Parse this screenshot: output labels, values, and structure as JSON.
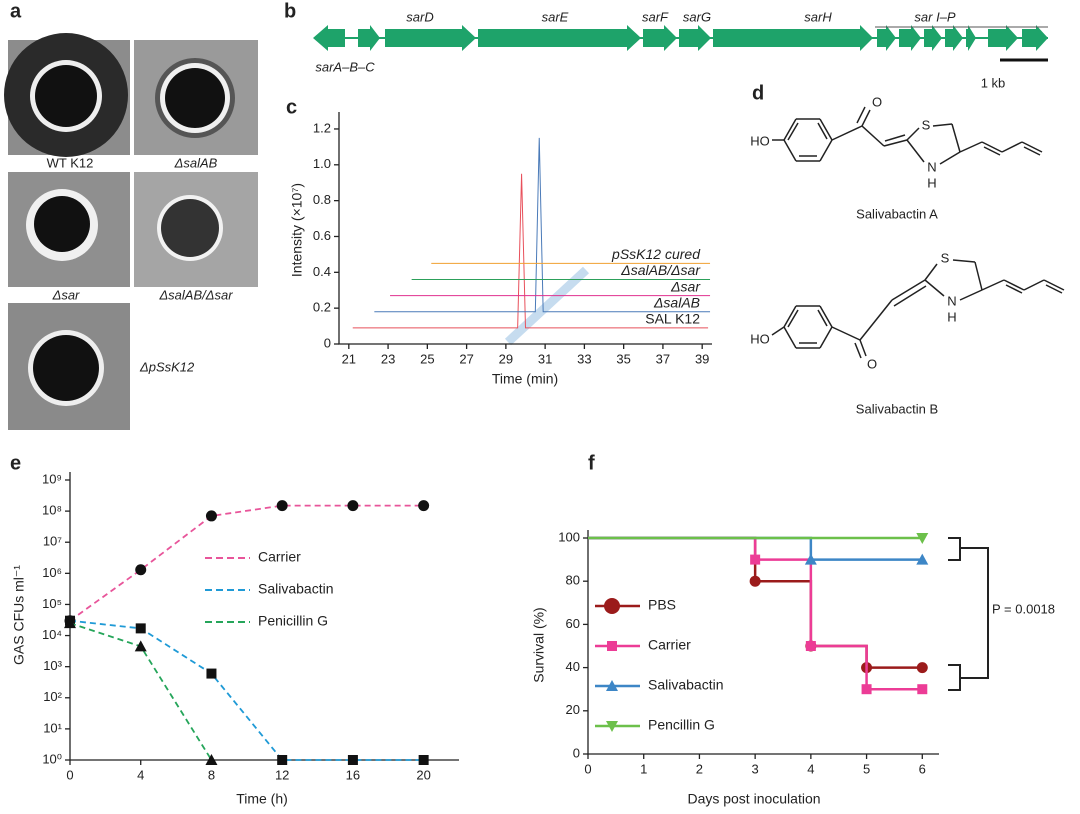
{
  "panel_labels": [
    "a",
    "b",
    "c",
    "d",
    "e",
    "f"
  ],
  "panel_a": {
    "labels": [
      "WT K12",
      "ΔsalAB",
      "Δsar",
      "ΔsalAB/Δsar",
      "ΔpSsK12"
    ]
  },
  "panel_b": {
    "genes": [
      "sarA–B–C",
      "sarD",
      "sarE",
      "sarF",
      "sarG",
      "sarH",
      "sar I–P"
    ],
    "scale_label": "1 kb"
  },
  "panel_d": {
    "structures": [
      {
        "name": "Salivabactin A",
        "atoms": {
          "hydroxyl": "HO",
          "oxygen": "O",
          "sulfur": "S",
          "nitrogen": "N",
          "hydrogen": "H"
        }
      },
      {
        "name": "Salivabactin B",
        "atoms": {
          "hydroxyl": "HO",
          "oxygen": "O",
          "sulfur": "S",
          "nitrogen": "N",
          "hydrogen": "H"
        }
      }
    ]
  },
  "chart_data": [
    {
      "type": "line",
      "x_label": "Time (min)",
      "y_label": "Intensity (×10⁷)",
      "xlim": [
        20.5,
        39.5
      ],
      "ylim": [
        0,
        1.25
      ],
      "xticks": [
        21,
        23,
        25,
        27,
        29,
        31,
        33,
        35,
        37,
        39
      ],
      "yticks": [
        0,
        0.2,
        0.4,
        0.6,
        0.8,
        {
          "value": 1,
          "label": "1.0"
        },
        1.2
      ],
      "series": [
        {
          "name": "SAL K12",
          "color": "#e8505b",
          "x": [
            21.2,
            29.6,
            29.8,
            30.0,
            39.3
          ],
          "values": [
            0.09,
            0.09,
            0.95,
            0.09,
            0.09
          ]
        },
        {
          "name": "ΔsalAB",
          "color": "#4a7ab8",
          "x": [
            22.3,
            30.5,
            30.7,
            30.9,
            39.4
          ],
          "values": [
            0.18,
            0.18,
            1.15,
            0.18,
            0.18
          ]
        },
        {
          "name": "Δsar",
          "color": "#e0308f",
          "x": [
            23.1,
            39.4
          ],
          "values": [
            0.27,
            0.27
          ]
        },
        {
          "name": "ΔsalAB/Δsar",
          "color": "#2ca05a",
          "x": [
            24.2,
            39.4
          ],
          "values": [
            0.36,
            0.36
          ]
        },
        {
          "name": "pSsK12 cured",
          "color": "#f0a030",
          "x": [
            25.2,
            39.4
          ],
          "values": [
            0.45,
            0.45
          ]
        }
      ]
    },
    {
      "type": "line",
      "x_label": "Time (h)",
      "y_label": "GAS CFUs ml⁻¹",
      "log_y": true,
      "xlim": [
        0,
        22
      ],
      "ylim": [
        1,
        1000000000
      ],
      "xticks": [
        0,
        4,
        8,
        12,
        16,
        20
      ],
      "yticks": [
        {
          "value": 1,
          "label": "10⁰"
        },
        {
          "value": 10,
          "label": "10¹"
        },
        {
          "value": 100,
          "label": "10²"
        },
        {
          "value": 1000,
          "label": "10³"
        },
        {
          "value": 10000,
          "label": "10⁴"
        },
        {
          "value": 100000,
          "label": "10⁵"
        },
        {
          "value": 1000000,
          "label": "10⁶"
        },
        {
          "value": 10000000,
          "label": "10⁷"
        },
        {
          "value": 100000000,
          "label": "10⁸"
        },
        {
          "value": 1000000000,
          "label": "10⁹"
        }
      ],
      "series": [
        {
          "name": "Carrier",
          "color": "#e8559a",
          "marker": "circle",
          "x": [
            0,
            4,
            8,
            12,
            16,
            20
          ],
          "values": [
            30000,
            1300000,
            70000000,
            150000000,
            150000000,
            150000000
          ]
        },
        {
          "name": "Salivabactin",
          "color": "#1f9ad6",
          "marker": "square",
          "x": [
            0,
            4,
            8,
            12,
            16,
            20
          ],
          "values": [
            30000,
            17000,
            600,
            1,
            1,
            1
          ]
        },
        {
          "name": "Penicillin G",
          "color": "#25a55a",
          "marker": "triangle",
          "x": [
            0,
            4,
            8
          ],
          "values": [
            25000,
            4500,
            1
          ]
        }
      ]
    },
    {
      "type": "step",
      "x_label": "Days post inoculation",
      "y_label": "Survival (%)",
      "xlim": [
        0,
        6.3
      ],
      "ylim": [
        0,
        100
      ],
      "xticks": [
        0,
        1,
        2,
        3,
        4,
        5,
        6
      ],
      "yticks": [
        0,
        20,
        40,
        60,
        80,
        100
      ],
      "annotation": "P = 0.0018",
      "series": [
        {
          "name": "PBS",
          "color": "#9b1b1b",
          "marker": "circle",
          "x": [
            0,
            3,
            4,
            5,
            6
          ],
          "values": [
            100,
            80,
            50,
            40,
            40
          ]
        },
        {
          "name": "Carrier",
          "color": "#ec3c96",
          "marker": "square",
          "x": [
            0,
            3,
            4,
            5,
            6
          ],
          "values": [
            100,
            90,
            50,
            30,
            30
          ]
        },
        {
          "name": "Salivabactin",
          "color": "#3d86c6",
          "marker": "triangle",
          "x": [
            0,
            4,
            6
          ],
          "values": [
            100,
            90,
            90
          ]
        },
        {
          "name": "Pencillin G",
          "color": "#6cc04a",
          "marker": "triangle-down",
          "x": [
            0,
            6
          ],
          "values": [
            100,
            100
          ]
        }
      ]
    }
  ]
}
